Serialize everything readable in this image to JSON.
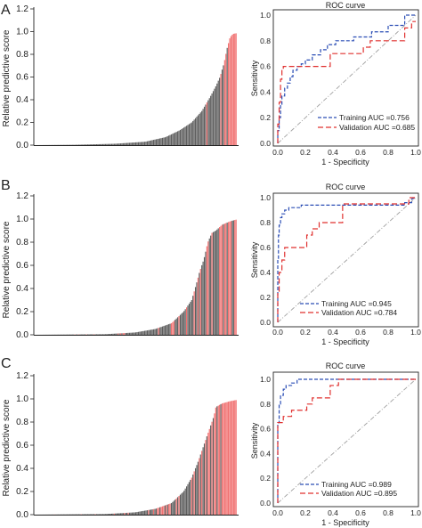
{
  "panels": [
    {
      "letter": "A",
      "bar_chart": {
        "ylabel": "Relative predictive score",
        "yticks": [
          "0.0",
          "0.2",
          "0.4",
          "0.6",
          "0.8",
          "1.0",
          "1.2"
        ]
      },
      "roc_chart": {
        "title": "ROC curve",
        "xlabel": "1 - Specificity",
        "ylabel": "Sensitivity",
        "xticks": [
          "0.0",
          "0.2",
          "0.4",
          "0.6",
          "0.8",
          "1.0"
        ],
        "yticks": [
          "0.0",
          "0.2",
          "0.4",
          "0.6",
          "0.8",
          "1.0"
        ],
        "legend": [
          "Training AUC =0.756",
          "Validation AUC =0.685"
        ]
      }
    },
    {
      "letter": "B",
      "bar_chart": {
        "ylabel": "Relative predictive score",
        "yticks": [
          "0.0",
          "0.2",
          "0.4",
          "0.6",
          "0.8",
          "1.0",
          "1.2"
        ]
      },
      "roc_chart": {
        "title": "ROC curve",
        "xlabel": "1 - Specificity",
        "ylabel": "Sensitivity",
        "xticks": [
          "0.0",
          "0.2",
          "0.4",
          "0.6",
          "0.8",
          "1.0"
        ],
        "yticks": [
          "0.0",
          "0.2",
          "0.4",
          "0.6",
          "0.8",
          "1.0"
        ],
        "legend": [
          "Training AUC =0.945",
          "Validation AUC =0.784"
        ]
      }
    },
    {
      "letter": "C",
      "bar_chart": {
        "ylabel": "Relative predictive score",
        "yticks": [
          "0.0",
          "0.2",
          "0.4",
          "0.6",
          "0.8",
          "1.0",
          "1.2"
        ]
      },
      "roc_chart": {
        "title": "ROC curve",
        "xlabel": "1 - Specificity",
        "ylabel": "Sensitivity",
        "xticks": [
          "0.0",
          "0.2",
          "0.4",
          "0.6",
          "0.8",
          "1.0"
        ],
        "yticks": [
          "0.0",
          "0.2",
          "0.4",
          "0.6",
          "0.8",
          "1.0"
        ],
        "legend": [
          "Training AUC =0.989",
          "Validation AUC =0.895"
        ]
      }
    }
  ],
  "colors": {
    "bar_grey": "#5e5e5e",
    "bar_red": "#f07070",
    "training": "#2a4db5",
    "validation": "#e0302f",
    "reference": "#a0a0a0"
  },
  "chart_data": [
    {
      "panel": "A",
      "type": "bar",
      "ylabel": "Relative predictive score",
      "ylim": [
        0,
        1.2
      ],
      "n_bars": 160,
      "sorted": "ascending",
      "quantiles": [
        [
          0,
          0.0
        ],
        [
          0.2,
          0.003
        ],
        [
          0.4,
          0.012
        ],
        [
          0.55,
          0.03
        ],
        [
          0.65,
          0.07
        ],
        [
          0.72,
          0.13
        ],
        [
          0.78,
          0.2
        ],
        [
          0.83,
          0.3
        ],
        [
          0.87,
          0.42
        ],
        [
          0.9,
          0.52
        ],
        [
          0.92,
          0.6
        ],
        [
          0.94,
          0.72
        ],
        [
          0.955,
          0.85
        ],
        [
          0.97,
          0.95
        ],
        [
          0.985,
          0.98
        ],
        [
          1.0,
          0.985
        ]
      ],
      "red_fraction_segments": [
        [
          0,
          0.85,
          0.0
        ],
        [
          0.85,
          0.93,
          0.2
        ],
        [
          0.93,
          0.965,
          0.7
        ],
        [
          0.965,
          1.0,
          1.0
        ]
      ]
    },
    {
      "panel": "A",
      "type": "line",
      "title": "ROC curve",
      "xlabel": "1 - Specificity",
      "ylabel": "Sensitivity",
      "xlim": [
        0,
        1
      ],
      "ylim": [
        0,
        1
      ],
      "series": [
        {
          "name": "Training AUC =0.756",
          "x": [
            0,
            0,
            0.01,
            0.01,
            0.02,
            0.02,
            0.03,
            0.03,
            0.05,
            0.05,
            0.07,
            0.07,
            0.09,
            0.09,
            0.11,
            0.11,
            0.14,
            0.14,
            0.17,
            0.17,
            0.2,
            0.2,
            0.25,
            0.25,
            0.31,
            0.31,
            0.36,
            0.36,
            0.42,
            0.42,
            0.55,
            0.55,
            0.68,
            0.68,
            0.8,
            0.8,
            0.92,
            0.92,
            1.0
          ],
          "y": [
            0,
            0.1,
            0.1,
            0.2,
            0.2,
            0.3,
            0.3,
            0.37,
            0.37,
            0.43,
            0.43,
            0.47,
            0.47,
            0.52,
            0.52,
            0.57,
            0.57,
            0.6,
            0.6,
            0.62,
            0.62,
            0.65,
            0.65,
            0.69,
            0.69,
            0.73,
            0.73,
            0.77,
            0.77,
            0.8,
            0.8,
            0.83,
            0.83,
            0.87,
            0.87,
            0.92,
            0.92,
            1.0,
            1.0
          ]
        },
        {
          "name": "Validation AUC =0.685",
          "x": [
            0,
            0,
            0.01,
            0.01,
            0.02,
            0.02,
            0.03,
            0.03,
            0.04,
            0.04,
            0.38,
            0.38,
            0.62,
            0.62,
            0.67,
            0.67,
            0.92,
            0.92,
            0.97,
            0.97,
            1.0
          ],
          "y": [
            0,
            0.15,
            0.15,
            0.32,
            0.32,
            0.5,
            0.5,
            0.58,
            0.58,
            0.6,
            0.6,
            0.7,
            0.7,
            0.75,
            0.75,
            0.8,
            0.8,
            0.9,
            0.9,
            0.95,
            0.95
          ]
        }
      ]
    },
    {
      "panel": "B",
      "type": "bar",
      "ylabel": "Relative predictive score",
      "ylim": [
        0,
        1.2
      ],
      "n_bars": 160,
      "sorted": "ascending",
      "quantiles": [
        [
          0,
          0.0
        ],
        [
          0.35,
          0.005
        ],
        [
          0.5,
          0.02
        ],
        [
          0.6,
          0.05
        ],
        [
          0.68,
          0.1
        ],
        [
          0.74,
          0.2
        ],
        [
          0.78,
          0.3
        ],
        [
          0.8,
          0.42
        ],
        [
          0.82,
          0.55
        ],
        [
          0.84,
          0.65
        ],
        [
          0.86,
          0.8
        ],
        [
          0.88,
          0.88
        ],
        [
          0.9,
          0.9
        ],
        [
          0.93,
          0.95
        ],
        [
          0.97,
          0.98
        ],
        [
          1.0,
          0.995
        ]
      ],
      "red_fraction_segments": [
        [
          0,
          0.55,
          0.08
        ],
        [
          0.55,
          0.8,
          0.12
        ],
        [
          0.8,
          0.88,
          0.3
        ],
        [
          0.88,
          0.94,
          0.55
        ],
        [
          0.94,
          1.0,
          0.7
        ]
      ]
    },
    {
      "panel": "B",
      "type": "line",
      "title": "ROC curve",
      "xlabel": "1 - Specificity",
      "ylabel": "Sensitivity",
      "xlim": [
        0,
        1
      ],
      "ylim": [
        0,
        1
      ],
      "series": [
        {
          "name": "Training AUC =0.945",
          "x": [
            0,
            0,
            0.005,
            0.005,
            0.01,
            0.01,
            0.02,
            0.02,
            0.03,
            0.03,
            0.05,
            0.05,
            0.08,
            0.08,
            0.17,
            0.17,
            0.92,
            0.92,
            0.97,
            0.97,
            1.0
          ],
          "y": [
            0,
            0.5,
            0.5,
            0.7,
            0.7,
            0.78,
            0.78,
            0.84,
            0.84,
            0.87,
            0.87,
            0.9,
            0.9,
            0.92,
            0.92,
            0.94,
            0.94,
            0.96,
            0.96,
            0.99,
            1.0
          ]
        },
        {
          "name": "Validation AUC =0.784",
          "x": [
            0,
            0,
            0.01,
            0.01,
            0.03,
            0.03,
            0.05,
            0.05,
            0.08,
            0.08,
            0.21,
            0.21,
            0.25,
            0.25,
            0.3,
            0.3,
            0.33,
            0.33,
            0.47,
            0.47,
            0.95,
            0.95,
            1.0
          ],
          "y": [
            0,
            0.25,
            0.25,
            0.4,
            0.4,
            0.5,
            0.5,
            0.6,
            0.6,
            0.6,
            0.6,
            0.7,
            0.7,
            0.75,
            0.75,
            0.8,
            0.8,
            0.8,
            0.8,
            0.95,
            0.95,
            1.0,
            1.0
          ]
        }
      ]
    },
    {
      "panel": "C",
      "type": "bar",
      "ylabel": "Relative predictive score",
      "ylim": [
        0,
        1.2
      ],
      "n_bars": 160,
      "sorted": "ascending",
      "quantiles": [
        [
          0,
          0.0
        ],
        [
          0.35,
          0.005
        ],
        [
          0.5,
          0.02
        ],
        [
          0.6,
          0.05
        ],
        [
          0.68,
          0.1
        ],
        [
          0.74,
          0.2
        ],
        [
          0.78,
          0.32
        ],
        [
          0.81,
          0.45
        ],
        [
          0.84,
          0.6
        ],
        [
          0.87,
          0.75
        ],
        [
          0.89,
          0.85
        ],
        [
          0.9,
          0.93
        ],
        [
          0.93,
          0.96
        ],
        [
          0.97,
          0.98
        ],
        [
          1.0,
          0.99
        ]
      ],
      "red_fraction_segments": [
        [
          0,
          0.55,
          0.05
        ],
        [
          0.55,
          0.8,
          0.25
        ],
        [
          0.8,
          0.88,
          0.45
        ],
        [
          0.88,
          0.94,
          0.65
        ],
        [
          0.94,
          1.0,
          1.0
        ]
      ]
    },
    {
      "panel": "C",
      "type": "line",
      "title": "ROC curve",
      "xlabel": "1 - Specificity",
      "ylabel": "Sensitivity",
      "xlim": [
        0,
        1
      ],
      "ylim": [
        0,
        1
      ],
      "series": [
        {
          "name": "Training AUC =0.989",
          "x": [
            0,
            0,
            0.01,
            0.01,
            0.02,
            0.02,
            0.04,
            0.04,
            0.06,
            0.06,
            0.1,
            0.1,
            0.14,
            0.14,
            1.0
          ],
          "y": [
            0,
            0.65,
            0.65,
            0.8,
            0.8,
            0.87,
            0.87,
            0.92,
            0.92,
            0.95,
            0.95,
            0.97,
            0.97,
            1.0,
            1.0
          ]
        },
        {
          "name": "Validation AUC =0.895",
          "x": [
            0,
            0,
            0.04,
            0.04,
            0.1,
            0.1,
            0.21,
            0.21,
            0.25,
            0.25,
            0.33,
            0.33,
            0.38,
            0.38,
            0.44,
            0.44,
            1.0
          ],
          "y": [
            0,
            0.65,
            0.65,
            0.7,
            0.7,
            0.75,
            0.75,
            0.8,
            0.8,
            0.85,
            0.85,
            0.85,
            0.85,
            0.95,
            0.95,
            1.0,
            1.0
          ]
        }
      ]
    }
  ]
}
